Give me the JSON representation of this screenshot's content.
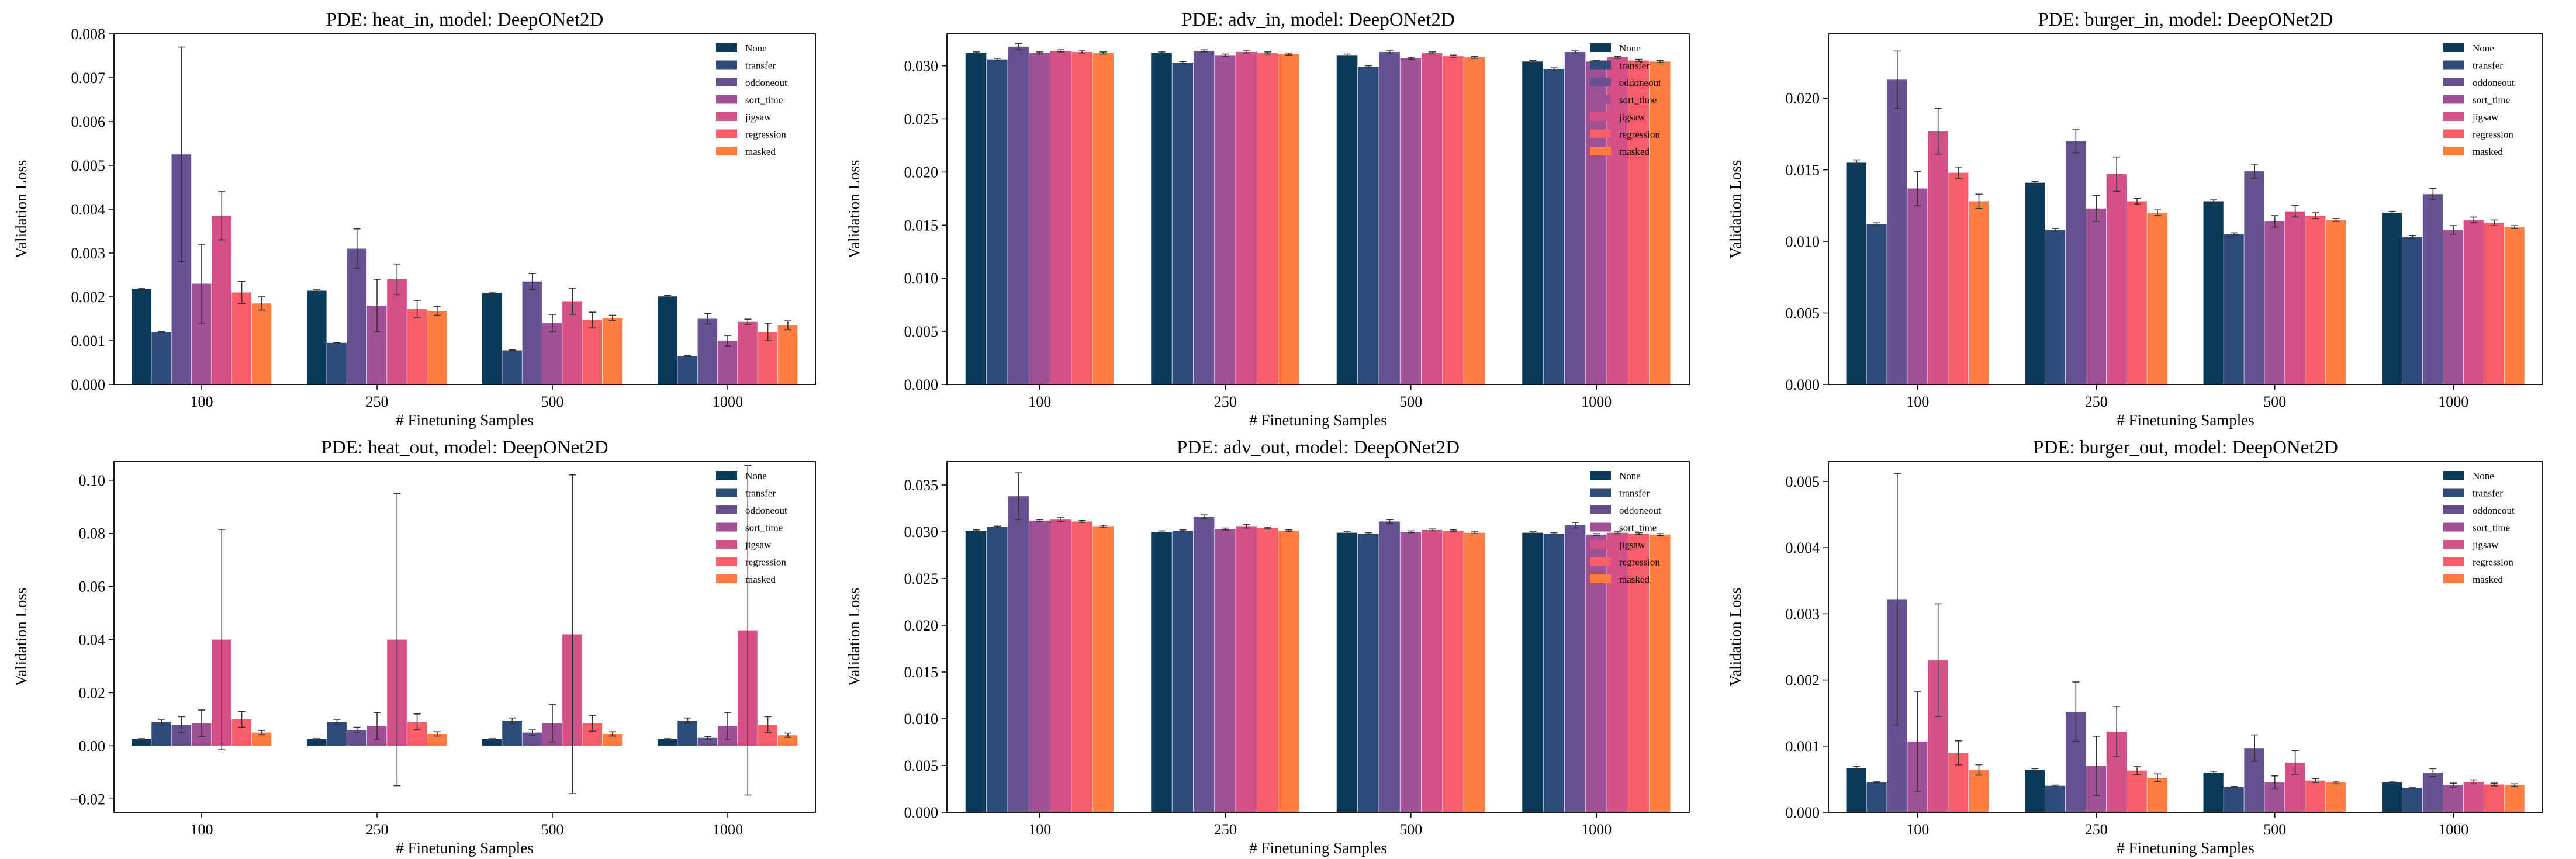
{
  "figure": {
    "xlabel": "# Finetuning Samples",
    "ylabel": "Validation Loss",
    "categories": [
      "100",
      "250",
      "500",
      "1000"
    ],
    "legend": [
      "None",
      "transfer",
      "oddoneout",
      "sort_time",
      "jigsaw",
      "regression",
      "masked"
    ],
    "colors": [
      "#0b3a5b",
      "#2f4b7c",
      "#665191",
      "#a05195",
      "#d45087",
      "#f95d6a",
      "#ff7c43"
    ]
  },
  "chart_data": [
    {
      "type": "bar",
      "title": "PDE: heat_in, model: DeepONet2D",
      "xlabel": "# Finetuning Samples",
      "ylabel": "Validation Loss",
      "categories": [
        "100",
        "250",
        "500",
        "1000"
      ],
      "ylim": [
        0,
        0.008
      ],
      "yticks": [
        "0.000",
        "0.001",
        "0.002",
        "0.003",
        "0.004",
        "0.005",
        "0.006",
        "0.007",
        "0.008"
      ],
      "legend_position": "top-right",
      "series": [
        {
          "name": "None",
          "values": [
            0.00218,
            0.00214,
            0.00209,
            0.00201
          ],
          "errors": [
            2e-05,
            2e-05,
            2e-05,
            2e-05
          ]
        },
        {
          "name": "transfer",
          "values": [
            0.0012,
            0.00095,
            0.00078,
            0.00065
          ],
          "errors": [
            1e-05,
            1e-05,
            1e-05,
            1e-05
          ]
        },
        {
          "name": "oddoneout",
          "values": [
            0.00525,
            0.0031,
            0.00235,
            0.0015
          ],
          "errors": [
            0.00245,
            0.00045,
            0.00018,
            0.00012
          ]
        },
        {
          "name": "sort_time",
          "values": [
            0.0023,
            0.0018,
            0.0014,
            0.001
          ],
          "errors": [
            0.0009,
            0.0006,
            0.0002,
            0.00012
          ]
        },
        {
          "name": "jigsaw",
          "values": [
            0.00385,
            0.0024,
            0.0019,
            0.00143
          ],
          "errors": [
            0.00055,
            0.00035,
            0.0003,
            6e-05
          ]
        },
        {
          "name": "regression",
          "values": [
            0.0021,
            0.00172,
            0.00147,
            0.0012
          ],
          "errors": [
            0.00025,
            0.0002,
            0.00018,
            0.0002
          ]
        },
        {
          "name": "masked",
          "values": [
            0.00185,
            0.00168,
            0.00152,
            0.00135
          ],
          "errors": [
            0.00015,
            0.0001,
            6e-05,
            0.0001
          ]
        }
      ]
    },
    {
      "type": "bar",
      "title": "PDE: adv_in, model: DeepONet2D",
      "xlabel": "# Finetuning Samples",
      "ylabel": "Validation Loss",
      "categories": [
        "100",
        "250",
        "500",
        "1000"
      ],
      "ylim": [
        0,
        0.033
      ],
      "yticks": [
        "0.000",
        "0.005",
        "0.010",
        "0.015",
        "0.020",
        "0.025",
        "0.030"
      ],
      "legend_position": "top-right",
      "series": [
        {
          "name": "None",
          "values": [
            0.0312,
            0.0312,
            0.031,
            0.0304
          ],
          "errors": [
            0.0001,
            0.0001,
            0.0001,
            0.0001
          ]
        },
        {
          "name": "transfer",
          "values": [
            0.0306,
            0.0303,
            0.0299,
            0.0297
          ],
          "errors": [
            0.0001,
            0.0001,
            0.0001,
            0.0001
          ]
        },
        {
          "name": "oddoneout",
          "values": [
            0.0318,
            0.0314,
            0.0313,
            0.0313
          ],
          "errors": [
            0.0003,
            0.0001,
            0.0001,
            0.0001
          ]
        },
        {
          "name": "sort_time",
          "values": [
            0.0312,
            0.031,
            0.0307,
            0.0304
          ],
          "errors": [
            0.0001,
            0.0001,
            0.0001,
            0.0001
          ]
        },
        {
          "name": "jigsaw",
          "values": [
            0.0314,
            0.0313,
            0.0312,
            0.0308
          ],
          "errors": [
            0.0001,
            0.0001,
            0.0001,
            0.0001
          ]
        },
        {
          "name": "regression",
          "values": [
            0.0313,
            0.0312,
            0.0309,
            0.0305
          ],
          "errors": [
            0.0001,
            0.0001,
            0.0001,
            0.0001
          ]
        },
        {
          "name": "masked",
          "values": [
            0.0312,
            0.0311,
            0.0308,
            0.0304
          ],
          "errors": [
            0.0001,
            0.0001,
            0.0001,
            0.0001
          ]
        }
      ]
    },
    {
      "type": "bar",
      "title": "PDE: burger_in, model: DeepONet2D",
      "xlabel": "# Finetuning Samples",
      "ylabel": "Validation Loss",
      "categories": [
        "100",
        "250",
        "500",
        "1000"
      ],
      "ylim": [
        0,
        0.0245
      ],
      "yticks": [
        "0.000",
        "0.005",
        "0.010",
        "0.015",
        "0.020"
      ],
      "legend_position": "top-right",
      "series": [
        {
          "name": "None",
          "values": [
            0.0155,
            0.0141,
            0.0128,
            0.012
          ],
          "errors": [
            0.0002,
            0.0001,
            0.0001,
            0.0001
          ]
        },
        {
          "name": "transfer",
          "values": [
            0.0112,
            0.0108,
            0.0105,
            0.0103
          ],
          "errors": [
            0.0001,
            0.0001,
            0.0001,
            0.0001
          ]
        },
        {
          "name": "oddoneout",
          "values": [
            0.0213,
            0.017,
            0.0149,
            0.0133
          ],
          "errors": [
            0.002,
            0.0008,
            0.0005,
            0.0004
          ]
        },
        {
          "name": "sort_time",
          "values": [
            0.0137,
            0.0123,
            0.0114,
            0.0108
          ],
          "errors": [
            0.0012,
            0.0009,
            0.0004,
            0.0003
          ]
        },
        {
          "name": "jigsaw",
          "values": [
            0.0177,
            0.0147,
            0.0121,
            0.0115
          ],
          "errors": [
            0.0016,
            0.0012,
            0.0004,
            0.0002
          ]
        },
        {
          "name": "regression",
          "values": [
            0.0148,
            0.0128,
            0.0118,
            0.0113
          ],
          "errors": [
            0.0004,
            0.0002,
            0.0002,
            0.0002
          ]
        },
        {
          "name": "masked",
          "values": [
            0.0128,
            0.012,
            0.0115,
            0.011
          ],
          "errors": [
            0.0005,
            0.0002,
            0.0001,
            0.0001
          ]
        }
      ]
    },
    {
      "type": "bar",
      "title": "PDE: heat_out, model: DeepONet2D",
      "xlabel": "# Finetuning Samples",
      "ylabel": "Validation Loss",
      "categories": [
        "100",
        "250",
        "500",
        "1000"
      ],
      "ylim": [
        -0.025,
        0.107
      ],
      "yticks": [
        "−0.02",
        "0.00",
        "0.02",
        "0.04",
        "0.06",
        "0.08",
        "0.10"
      ],
      "legend_position": "top-right",
      "series": [
        {
          "name": "None",
          "values": [
            0.0025,
            0.0025,
            0.0025,
            0.0025
          ],
          "errors": [
            0.0002,
            0.0002,
            0.0002,
            0.0002
          ]
        },
        {
          "name": "transfer",
          "values": [
            0.009,
            0.009,
            0.0095,
            0.0095
          ],
          "errors": [
            0.001,
            0.001,
            0.001,
            0.001
          ]
        },
        {
          "name": "oddoneout",
          "values": [
            0.008,
            0.006,
            0.005,
            0.003
          ],
          "errors": [
            0.003,
            0.001,
            0.001,
            0.0005
          ]
        },
        {
          "name": "sort_time",
          "values": [
            0.0085,
            0.0075,
            0.0085,
            0.0075
          ],
          "errors": [
            0.005,
            0.005,
            0.007,
            0.005
          ]
        },
        {
          "name": "jigsaw",
          "values": [
            0.04,
            0.04,
            0.042,
            0.0435
          ],
          "errors": [
            0.0415,
            0.055,
            0.06,
            0.062
          ]
        },
        {
          "name": "regression",
          "values": [
            0.01,
            0.009,
            0.0085,
            0.008
          ],
          "errors": [
            0.003,
            0.003,
            0.003,
            0.003
          ]
        },
        {
          "name": "masked",
          "values": [
            0.005,
            0.0045,
            0.0045,
            0.004
          ],
          "errors": [
            0.0008,
            0.0008,
            0.0008,
            0.0008
          ]
        }
      ]
    },
    {
      "type": "bar",
      "title": "PDE: adv_out, model: DeepONet2D",
      "xlabel": "# Finetuning Samples",
      "ylabel": "Validation Loss",
      "categories": [
        "100",
        "250",
        "500",
        "1000"
      ],
      "ylim": [
        0,
        0.0375
      ],
      "yticks": [
        "0.000",
        "0.005",
        "0.010",
        "0.015",
        "0.020",
        "0.025",
        "0.030",
        "0.035"
      ],
      "legend_position": "top-right",
      "series": [
        {
          "name": "None",
          "values": [
            0.0301,
            0.03,
            0.0299,
            0.0299
          ],
          "errors": [
            0.0001,
            0.0001,
            0.0001,
            0.0001
          ]
        },
        {
          "name": "transfer",
          "values": [
            0.0305,
            0.0301,
            0.0298,
            0.0298
          ],
          "errors": [
            0.0001,
            0.0001,
            0.0001,
            0.0001
          ]
        },
        {
          "name": "oddoneout",
          "values": [
            0.0338,
            0.0316,
            0.0311,
            0.0307
          ],
          "errors": [
            0.0025,
            0.0002,
            0.0002,
            0.0003
          ]
        },
        {
          "name": "sort_time",
          "values": [
            0.0312,
            0.0303,
            0.03,
            0.0297
          ],
          "errors": [
            0.0001,
            0.0001,
            0.0001,
            0.0001
          ]
        },
        {
          "name": "jigsaw",
          "values": [
            0.0313,
            0.0306,
            0.0302,
            0.0299
          ],
          "errors": [
            0.0002,
            0.0002,
            0.0001,
            0.0001
          ]
        },
        {
          "name": "regression",
          "values": [
            0.0311,
            0.0304,
            0.0301,
            0.0298
          ],
          "errors": [
            0.0001,
            0.0001,
            0.0001,
            0.0001
          ]
        },
        {
          "name": "masked",
          "values": [
            0.0306,
            0.0301,
            0.0299,
            0.0297
          ],
          "errors": [
            0.0001,
            0.0001,
            0.0001,
            0.0001
          ]
        }
      ]
    },
    {
      "type": "bar",
      "title": "PDE: burger_out, model: DeepONet2D",
      "xlabel": "# Finetuning Samples",
      "ylabel": "Validation Loss",
      "categories": [
        "100",
        "250",
        "500",
        "1000"
      ],
      "ylim": [
        0,
        0.0053
      ],
      "yticks": [
        "0.000",
        "0.001",
        "0.002",
        "0.003",
        "0.004",
        "0.005"
      ],
      "legend_position": "top-right",
      "series": [
        {
          "name": "None",
          "values": [
            0.00067,
            0.00064,
            0.0006,
            0.00045
          ],
          "errors": [
            2e-05,
            2e-05,
            2e-05,
            2e-05
          ]
        },
        {
          "name": "transfer",
          "values": [
            0.00045,
            0.0004,
            0.00038,
            0.00037
          ],
          "errors": [
            1e-05,
            1e-05,
            1e-05,
            1e-05
          ]
        },
        {
          "name": "oddoneout",
          "values": [
            0.00322,
            0.00152,
            0.00097,
            0.0006
          ],
          "errors": [
            0.0019,
            0.00045,
            0.0002,
            6e-05
          ]
        },
        {
          "name": "sort_time",
          "values": [
            0.00107,
            0.0007,
            0.00045,
            0.00041
          ],
          "errors": [
            0.00075,
            0.00045,
            0.0001,
            3e-05
          ]
        },
        {
          "name": "jigsaw",
          "values": [
            0.0023,
            0.00122,
            0.00075,
            0.00046
          ],
          "errors": [
            0.00085,
            0.00038,
            0.00018,
            3e-05
          ]
        },
        {
          "name": "regression",
          "values": [
            0.0009,
            0.00063,
            0.00048,
            0.00042
          ],
          "errors": [
            0.00018,
            6e-05,
            3e-05,
            2e-05
          ]
        },
        {
          "name": "masked",
          "values": [
            0.00064,
            0.00052,
            0.00045,
            0.00041
          ],
          "errors": [
            8e-05,
            6e-05,
            2e-05,
            2e-05
          ]
        }
      ]
    }
  ]
}
